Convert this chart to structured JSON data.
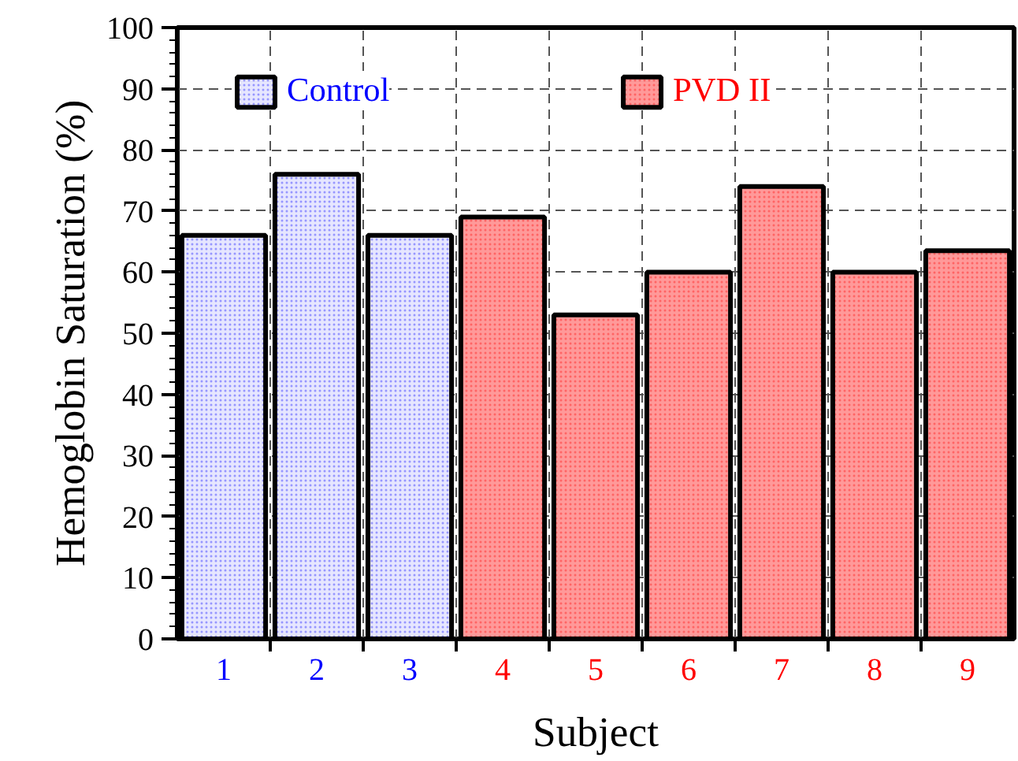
{
  "chart_data": {
    "type": "bar",
    "xlabel": "Subject",
    "ylabel": "Hemoglobin Saturation (%)",
    "categories": [
      "1",
      "2",
      "3",
      "4",
      "5",
      "6",
      "7",
      "8",
      "9"
    ],
    "series": [
      {
        "name": "Control",
        "color": "#e6e6ff",
        "values": [
          66,
          76,
          66,
          null,
          null,
          null,
          null,
          null,
          null
        ]
      },
      {
        "name": "PVD II",
        "color": "#ff9999",
        "values": [
          null,
          null,
          null,
          69,
          53,
          60,
          74,
          60,
          63.5
        ]
      }
    ],
    "ylim": [
      0,
      100
    ],
    "yticks": [
      0,
      10,
      20,
      30,
      40,
      50,
      60,
      70,
      80,
      90,
      100
    ],
    "grid": true,
    "legend": "top"
  }
}
